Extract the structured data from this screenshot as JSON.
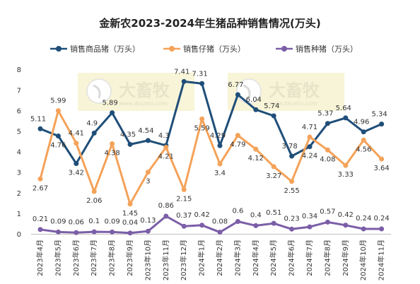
{
  "chart_data": {
    "type": "line",
    "title": "金新农2023-2024年生猪品种销售情况(万头)",
    "categories": [
      "2023年4月",
      "2023年5月",
      "2023年6月",
      "2023年7月",
      "2023年8月",
      "2023年9月",
      "2023年10月",
      "2023年11月",
      "2023年12月",
      "2024年1月",
      "2024年2月",
      "2024年3月",
      "2024年4月",
      "2024年5月",
      "2024年6月",
      "2024年7月",
      "2024年8月",
      "2024年9月",
      "2024年10月",
      "2024年11月"
    ],
    "ylim": [
      0,
      8
    ],
    "yticks": [
      0,
      1,
      2,
      3,
      4,
      5,
      6,
      7,
      8
    ],
    "grid": false,
    "legend_position": "top",
    "series": [
      {
        "name": "销售商品猪（万头）",
        "color": "#1f4e79",
        "values": [
          5.11,
          4.76,
          3.42,
          4.9,
          5.89,
          4.35,
          4.54,
          4.3,
          7.41,
          7.31,
          4.29,
          6.77,
          6.04,
          5.74,
          3.78,
          4.24,
          5.37,
          5.64,
          4.96,
          5.34
        ]
      },
      {
        "name": "销售仔猪（万头）",
        "color": "#f4a259",
        "values": [
          2.67,
          5.99,
          4.41,
          2.06,
          4.38,
          1.45,
          3,
          4.21,
          2.15,
          5.59,
          3.4,
          4.79,
          4.12,
          3.27,
          2.55,
          4.71,
          4.08,
          3.33,
          4.56,
          3.64
        ]
      },
      {
        "name": "销售种猪（万头）",
        "color": "#7b5ea7",
        "values": [
          0.21,
          0.09,
          0.06,
          0.1,
          0.09,
          0.04,
          0.13,
          0.86,
          0.37,
          0.42,
          0.08,
          0.6,
          0.4,
          0.51,
          0.23,
          0.34,
          0.57,
          0.42,
          0.24,
          0.24
        ]
      }
    ]
  },
  "watermark": {
    "brand": "大畜牧",
    "url": "www.dxumu.com"
  }
}
